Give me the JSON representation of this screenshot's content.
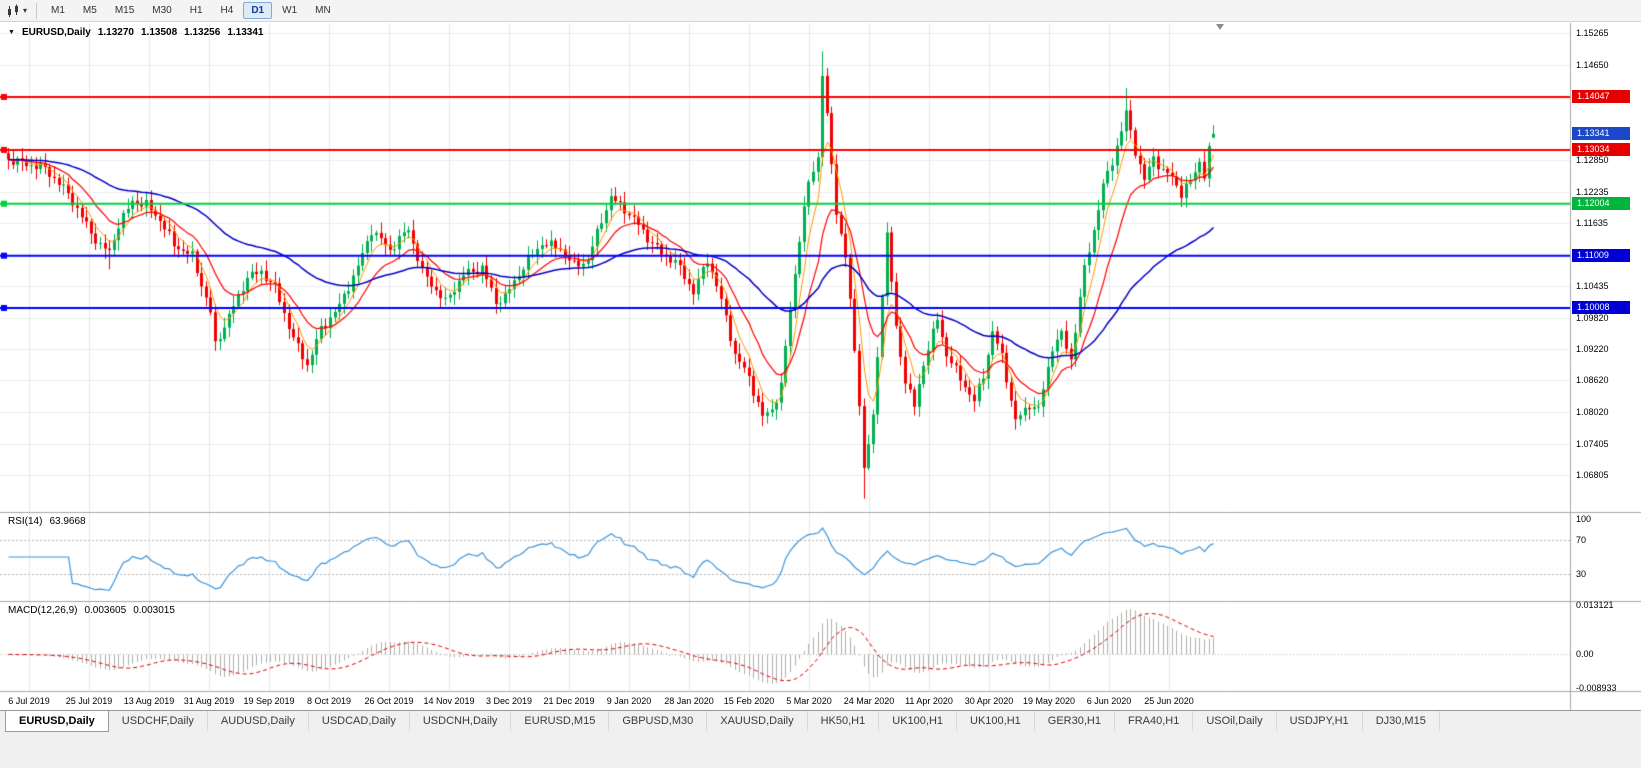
{
  "ui": {
    "toolbar": {
      "timeframes": [
        "M1",
        "M5",
        "M15",
        "M30",
        "H1",
        "H4",
        "D1",
        "W1",
        "MN"
      ],
      "active_timeframe": "D1"
    },
    "header": {
      "expand_icon": "▼",
      "title": "EURUSD,Daily",
      "open": "1.13270",
      "high": "1.13508",
      "low": "1.13256",
      "close": "1.13341"
    },
    "rsi": {
      "label": "RSI(14)",
      "value": "63.9668"
    },
    "macd": {
      "label": "MACD(12,26,9)",
      "main": "0.003605",
      "signal": "0.003015"
    },
    "price_badges": [
      {
        "label": "1.14047",
        "value": 1.14047,
        "bg": "#e60000",
        "current": false
      },
      {
        "label": "1.13341",
        "value": 1.13341,
        "bg": "#1c48c8",
        "current": true
      },
      {
        "label": "1.13034",
        "value": 1.13034,
        "bg": "#e60000",
        "current": false
      },
      {
        "label": "1.12004",
        "value": 1.12004,
        "bg": "#00b43c",
        "current": false
      },
      {
        "label": "1.11009",
        "value": 1.11009,
        "bg": "#0000d2",
        "current": false
      },
      {
        "label": "1.10008",
        "value": 1.10008,
        "bg": "#0000d2",
        "current": false
      }
    ],
    "tabs": [
      {
        "label": "EURUSD,Daily",
        "active": true
      },
      {
        "label": "USDCHF,Daily",
        "active": false
      },
      {
        "label": "AUDUSD,Daily",
        "active": false
      },
      {
        "label": "USDCAD,Daily",
        "active": false
      },
      {
        "label": "USDCNH,Daily",
        "active": false
      },
      {
        "label": "EURUSD,M15",
        "active": false
      },
      {
        "label": "GBPUSD,M30",
        "active": false
      },
      {
        "label": "XAUUSD,Daily",
        "active": false
      },
      {
        "label": "HK50,H1",
        "active": false
      },
      {
        "label": "UK100,H1",
        "active": false
      },
      {
        "label": "UK100,H1",
        "active": false
      },
      {
        "label": "GER30,H1",
        "active": false
      },
      {
        "label": "FRA40,H1",
        "active": false
      },
      {
        "label": "USOil,Daily",
        "active": false
      },
      {
        "label": "USDJPY,H1",
        "active": false
      },
      {
        "label": "DJ30,M15",
        "active": false
      }
    ]
  },
  "chart_data": {
    "type": "candlestick",
    "symbol": "EURUSD",
    "timeframe": "Daily",
    "last_candle": {
      "open": 1.1327,
      "high": 1.13508,
      "low": 1.13256,
      "close": 1.13341
    },
    "y_range": {
      "max": 1.15463,
      "min": 1.06122
    },
    "y_axis_ticks": [
      "1.15265",
      "1.14650",
      "1.12850",
      "1.12235",
      "1.11635",
      "1.10435",
      "1.09820",
      "1.09220",
      "1.08620",
      "1.08020",
      "1.07405",
      "1.06805"
    ],
    "x_axis_labels": [
      "6 Jul 2019",
      "25 Jul 2019",
      "13 Aug 2019",
      "31 Aug 2019",
      "19 Sep 2019",
      "8 Oct 2019",
      "26 Oct 2019",
      "14 Nov 2019",
      "3 Dec 2019",
      "21 Dec 2019",
      "9 Jan 2020",
      "28 Jan 2020",
      "15 Feb 2020",
      "5 Mar 2020",
      "24 Mar 2020",
      "11 Apr 2020",
      "30 Apr 2020",
      "19 May 2020",
      "6 Jun 2020",
      "25 Jun 2020"
    ],
    "candles": {
      "count": 263,
      "up_color": "#00b050",
      "down_color": "#f20000",
      "close_waypoints": [
        [
          0,
          1.1285
        ],
        [
          8,
          1.1268
        ],
        [
          13,
          1.122
        ],
        [
          18,
          1.1145
        ],
        [
          20,
          1.112
        ],
        [
          22,
          1.1108
        ],
        [
          24,
          1.116
        ],
        [
          27,
          1.1205
        ],
        [
          30,
          1.1198
        ],
        [
          33,
          1.117
        ],
        [
          36,
          1.1122
        ],
        [
          40,
          1.11
        ],
        [
          44,
          1.0992
        ],
        [
          45,
          1.093
        ],
        [
          48,
          1.0985
        ],
        [
          52,
          1.106
        ],
        [
          55,
          1.107
        ],
        [
          58,
          1.104
        ],
        [
          62,
          1.0942
        ],
        [
          65,
          1.0892
        ],
        [
          68,
          1.096
        ],
        [
          72,
          1.1005
        ],
        [
          76,
          1.108
        ],
        [
          79,
          1.115
        ],
        [
          83,
          1.1112
        ],
        [
          87,
          1.1152
        ],
        [
          90,
          1.107
        ],
        [
          93,
          1.1035
        ],
        [
          95,
          1.1012
        ],
        [
          99,
          1.1065
        ],
        [
          103,
          1.1078
        ],
        [
          106,
          1.1012
        ],
        [
          108,
          1.1022
        ],
        [
          112,
          1.108
        ],
        [
          116,
          1.1125
        ],
        [
          120,
          1.1115
        ],
        [
          123,
          1.1082
        ],
        [
          126,
          1.1092
        ],
        [
          129,
          1.117
        ],
        [
          131,
          1.1212
        ],
        [
          134,
          1.119
        ],
        [
          137,
          1.116
        ],
        [
          139,
          1.1135
        ],
        [
          142,
          1.1105
        ],
        [
          145,
          1.109
        ],
        [
          149,
          1.1032
        ],
        [
          152,
          1.1093
        ],
        [
          154,
          1.1045
        ],
        [
          156,
          1.0982
        ],
        [
          158,
          1.0912
        ],
        [
          161,
          1.0868
        ],
        [
          164,
          1.0792
        ],
        [
          166,
          1.0806
        ],
        [
          168,
          1.0852
        ],
        [
          170,
          1.0998
        ],
        [
          172,
          1.1135
        ],
        [
          174,
          1.124
        ],
        [
          176,
          1.129
        ],
        [
          177,
          1.145
        ],
        [
          178,
          1.1365
        ],
        [
          180,
          1.1185
        ],
        [
          182,
          1.11
        ],
        [
          184,
          1.092
        ],
        [
          185,
          1.082
        ],
        [
          186,
          1.0692
        ],
        [
          188,
          1.079
        ],
        [
          190,
          1.103
        ],
        [
          191,
          1.114
        ],
        [
          193,
          1.0962
        ],
        [
          195,
          1.0862
        ],
        [
          197,
          1.0812
        ],
        [
          199,
          1.0895
        ],
        [
          202,
          1.098
        ],
        [
          204,
          1.0912
        ],
        [
          207,
          1.0866
        ],
        [
          210,
          1.0822
        ],
        [
          212,
          1.0872
        ],
        [
          214,
          1.0955
        ],
        [
          216,
          1.0908
        ],
        [
          219,
          1.0784
        ],
        [
          222,
          1.0816
        ],
        [
          224,
          1.0806
        ],
        [
          227,
          1.0926
        ],
        [
          229,
          1.095
        ],
        [
          231,
          1.0902
        ],
        [
          234,
          1.1076
        ],
        [
          236,
          1.115
        ],
        [
          238,
          1.1234
        ],
        [
          240,
          1.1282
        ],
        [
          242,
          1.134
        ],
        [
          243,
          1.1374
        ],
        [
          245,
          1.1302
        ],
        [
          247,
          1.1245
        ],
        [
          249,
          1.129
        ],
        [
          251,
          1.1262
        ],
        [
          253,
          1.1252
        ],
        [
          255,
          1.122
        ],
        [
          257,
          1.1242
        ],
        [
          259,
          1.1282
        ],
        [
          260,
          1.1255
        ],
        [
          261,
          1.1302
        ],
        [
          262,
          1.13341
        ]
      ],
      "wick_overrides": [
        {
          "i": 22,
          "low": 1.1075
        },
        {
          "i": 45,
          "low": 1.0926
        },
        {
          "i": 65,
          "low": 1.0879
        },
        {
          "i": 164,
          "low": 1.0777
        },
        {
          "i": 177,
          "high": 1.1492
        },
        {
          "i": 186,
          "low": 1.0636
        },
        {
          "i": 243,
          "high": 1.1422
        },
        {
          "i": 262,
          "high": 1.13508,
          "low": 1.13256
        }
      ]
    },
    "overlays": {
      "horizontal_lines": [
        {
          "price": 1.14047,
          "color": "#ff0000",
          "width": 2
        },
        {
          "price": 1.13034,
          "color": "#ff0000",
          "width": 2
        },
        {
          "price": 1.12004,
          "color": "#00d23c",
          "width": 2
        },
        {
          "price": 1.11009,
          "color": "#0000ff",
          "width": 2
        },
        {
          "price": 1.10008,
          "color": "#0000ff",
          "width": 2
        }
      ],
      "moving_averages": [
        {
          "period": 5,
          "method": "ema",
          "color": "#ff9900",
          "width": 1
        },
        {
          "period": 13,
          "method": "ema",
          "color": "#ff0000",
          "width": 1.2
        },
        {
          "period": 50,
          "method": "ema",
          "color": "#0000c8",
          "width": 1.5
        }
      ]
    },
    "indicators": {
      "rsi": {
        "period": 14,
        "current": 63.9668,
        "range": [
          0,
          100
        ],
        "levels": [
          {
            "text": "100",
            "value": 100
          },
          {
            "text": "70",
            "value": 70
          },
          {
            "text": "30",
            "value": 30
          }
        ],
        "line_color": "#3e96dc"
      },
      "macd": {
        "fast": 12,
        "slow": 26,
        "signal": 9,
        "current_main": 0.003605,
        "current_signal": 0.003015,
        "scale_max": 0.013121,
        "scale_min": -0.008933,
        "axis_labels": [
          {
            "text": "0.013121",
            "value": 0.013121
          },
          {
            "text": "0.00",
            "value": 0
          },
          {
            "text": "-0.008933",
            "value": -0.008933
          }
        ],
        "hist_color": "#b0b0b0",
        "signal_color": "#e00000"
      }
    }
  }
}
